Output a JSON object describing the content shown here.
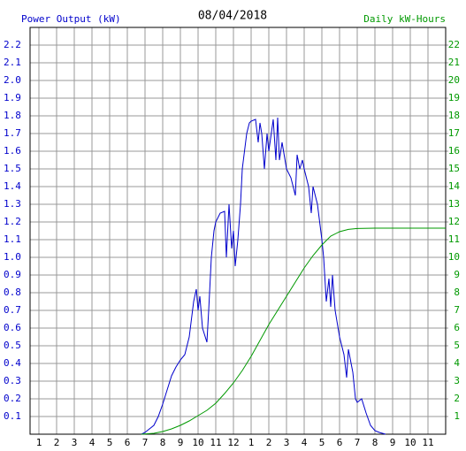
{
  "chart_data": {
    "type": "line",
    "title": "08/04/2018",
    "y_label": "Power Output (kW)",
    "y2_label": "Daily kW-Hours",
    "xlim": [
      0.5,
      24
    ],
    "xticks": [
      1,
      2,
      3,
      4,
      5,
      6,
      7,
      8,
      9,
      10,
      11,
      12,
      {
        "value": 13,
        "label": "1"
      },
      {
        "value": 14,
        "label": "2"
      },
      {
        "value": 15,
        "label": "3"
      },
      {
        "value": 16,
        "label": "4"
      },
      {
        "value": 17,
        "label": "5"
      },
      {
        "value": 18,
        "label": "6"
      },
      {
        "value": 19,
        "label": "7"
      },
      {
        "value": 20,
        "label": "8"
      },
      {
        "value": 21,
        "label": "9"
      },
      {
        "value": 22,
        "label": "10"
      },
      {
        "value": 23,
        "label": "11"
      }
    ],
    "ylim": [
      0,
      2.3
    ],
    "yticks": [
      0.1,
      0.2,
      0.3,
      0.4,
      0.5,
      0.6,
      0.7,
      0.8,
      0.9,
      {
        "value": 1,
        "label": "1.0"
      },
      1.1,
      1.2,
      1.3,
      1.4,
      1.5,
      1.6,
      1.7,
      1.8,
      1.9,
      {
        "value": 2,
        "label": "2.0"
      },
      2.1,
      2.2
    ],
    "y2lim": [
      0,
      23
    ],
    "y2ticks": [
      1,
      2,
      3,
      4,
      5,
      6,
      7,
      8,
      9,
      10,
      11,
      12,
      13,
      14,
      15,
      16,
      17,
      18,
      19,
      20,
      21,
      22
    ],
    "grid": true,
    "series": [
      {
        "name": "Power Output (kW)",
        "color": "#0000cc",
        "x": [
          6.8,
          7.0,
          7.25,
          7.5,
          7.75,
          8.0,
          8.25,
          8.5,
          8.75,
          9.0,
          9.25,
          9.5,
          9.75,
          9.9,
          10.0,
          10.1,
          10.25,
          10.5,
          10.6,
          10.75,
          10.9,
          11.0,
          11.25,
          11.5,
          11.6,
          11.75,
          11.9,
          12.0,
          12.1,
          12.25,
          12.4,
          12.5,
          12.75,
          12.9,
          13.0,
          13.25,
          13.4,
          13.5,
          13.6,
          13.75,
          13.9,
          14.0,
          14.25,
          14.4,
          14.5,
          14.6,
          14.75,
          15.0,
          15.25,
          15.5,
          15.6,
          15.75,
          15.9,
          16.0,
          16.25,
          16.4,
          16.5,
          16.75,
          17.0,
          17.1,
          17.25,
          17.4,
          17.5,
          17.6,
          17.75,
          18.0,
          18.25,
          18.4,
          18.5,
          18.75,
          18.9,
          19.0,
          19.25,
          19.5,
          19.75,
          20.0,
          20.25,
          20.6
        ],
        "values": [
          0,
          0.01,
          0.03,
          0.05,
          0.1,
          0.17,
          0.25,
          0.33,
          0.38,
          0.42,
          0.45,
          0.55,
          0.75,
          0.82,
          0.7,
          0.78,
          0.6,
          0.52,
          0.7,
          1.0,
          1.15,
          1.2,
          1.25,
          1.26,
          1.0,
          1.3,
          1.05,
          1.15,
          0.95,
          1.1,
          1.3,
          1.5,
          1.7,
          1.76,
          1.77,
          1.78,
          1.65,
          1.76,
          1.7,
          1.5,
          1.7,
          1.6,
          1.78,
          1.55,
          1.79,
          1.55,
          1.65,
          1.5,
          1.45,
          1.35,
          1.58,
          1.5,
          1.55,
          1.5,
          1.4,
          1.25,
          1.4,
          1.3,
          1.1,
          1.0,
          0.75,
          0.88,
          0.72,
          0.9,
          0.7,
          0.55,
          0.45,
          0.32,
          0.48,
          0.35,
          0.2,
          0.18,
          0.2,
          0.12,
          0.05,
          0.02,
          0.01,
          0
        ]
      },
      {
        "name": "Daily kW-Hours",
        "color": "#009900",
        "axis": "y2",
        "x": [
          6.8,
          7.5,
          8.0,
          8.5,
          9.0,
          9.5,
          10.0,
          10.5,
          11.0,
          11.5,
          12.0,
          12.5,
          13.0,
          13.5,
          14.0,
          14.5,
          15.0,
          15.5,
          16.0,
          16.5,
          17.0,
          17.5,
          18.0,
          18.5,
          19.0,
          20.0,
          24.0
        ],
        "values": [
          0,
          0.05,
          0.15,
          0.3,
          0.5,
          0.75,
          1.05,
          1.35,
          1.75,
          2.3,
          2.9,
          3.6,
          4.4,
          5.3,
          6.2,
          7.0,
          7.8,
          8.6,
          9.4,
          10.1,
          10.7,
          11.2,
          11.45,
          11.58,
          11.63,
          11.65,
          11.65
        ]
      }
    ]
  }
}
